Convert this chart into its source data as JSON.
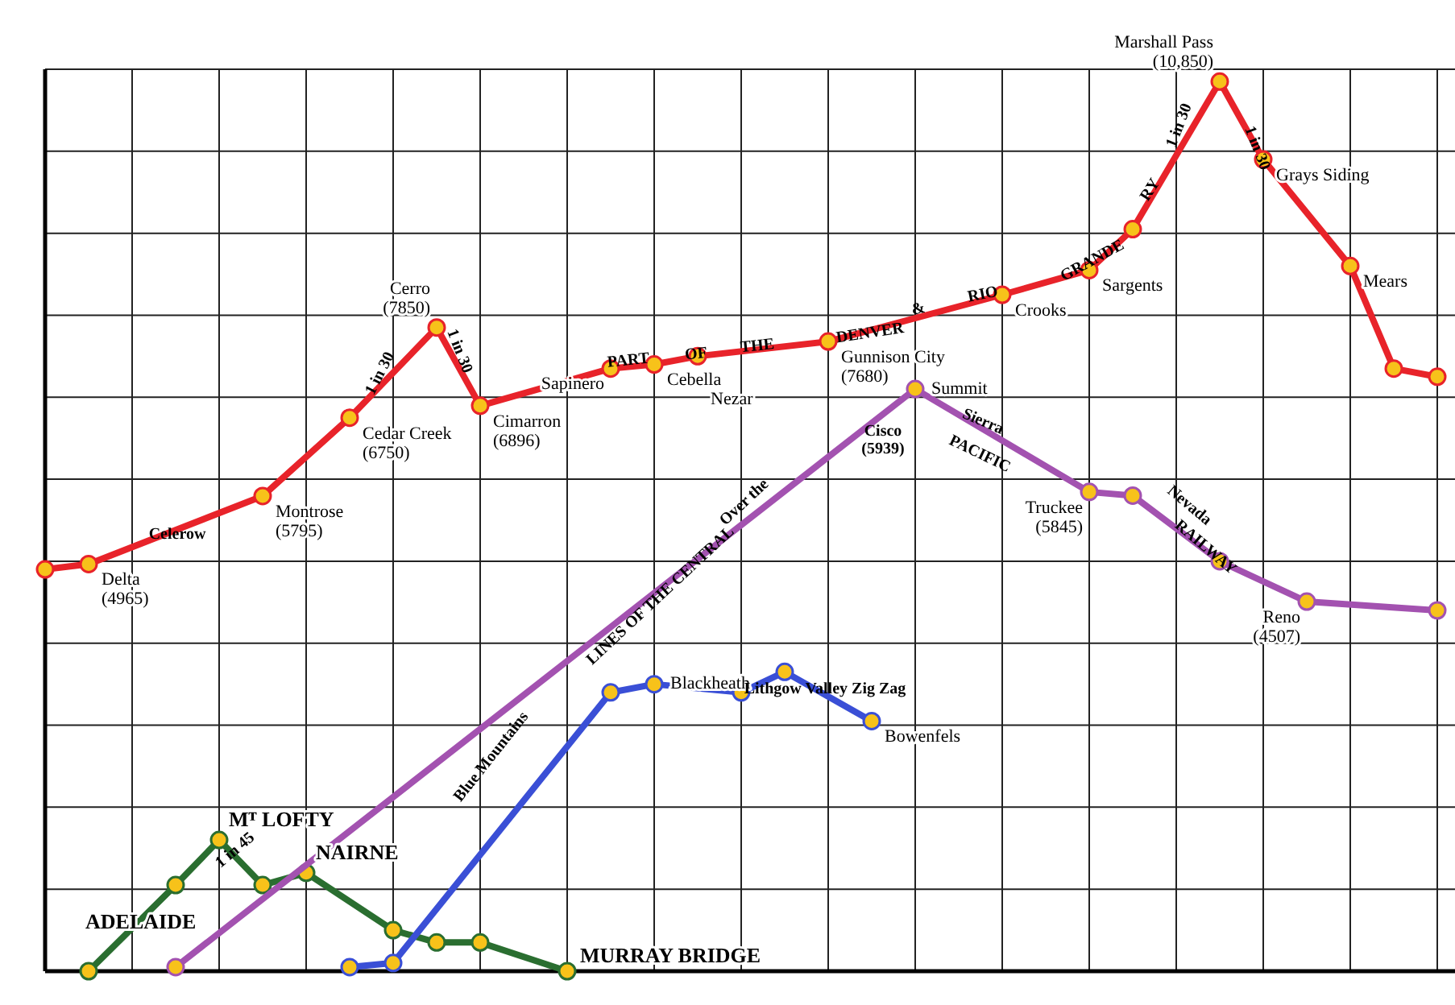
{
  "chart_data": {
    "type": "line",
    "grid": true,
    "legend": false,
    "marker": "circle",
    "line_style": "solid",
    "ylim": [
      0,
      11000
    ],
    "yticks": [
      {
        "value": 0,
        "label": null
      },
      {
        "value": 1000,
        "label": null
      },
      {
        "value": 2000,
        "label": null
      },
      {
        "value": 3000,
        "label": null
      },
      {
        "value": 4000,
        "label": null
      },
      {
        "value": 5000,
        "label": null
      },
      {
        "value": 6000,
        "label": null
      },
      {
        "value": 7000,
        "label": null
      },
      {
        "value": 8000,
        "label": null
      },
      {
        "value": 9000,
        "label": null
      },
      {
        "value": 10000,
        "label": null
      },
      {
        "value": 11000,
        "label": null
      }
    ],
    "categories": [
      null,
      null,
      null,
      null,
      null,
      null,
      null,
      null,
      null,
      null,
      null,
      null,
      null,
      null,
      null,
      null,
      null,
      null,
      null,
      null,
      null,
      null,
      null,
      null,
      null,
      null,
      null,
      null,
      null,
      null,
      null,
      null,
      null
    ],
    "series": [
      {
        "color": "#e8232a",
        "values": [
          4900,
          4965,
          null,
          null,
          null,
          5795,
          null,
          6750,
          null,
          7850,
          6896,
          null,
          null,
          7350,
          7400,
          7500,
          null,
          null,
          7680,
          null,
          null,
          null,
          8250,
          null,
          8550,
          9050,
          null,
          10850,
          9900,
          null,
          8600,
          7350,
          7250
        ],
        "value_labels": [
          null,
          "Delta\n(4965)",
          null,
          null,
          null,
          "Montrose\n(5795)",
          null,
          "Cedar Creek\n(6750)",
          null,
          "Cerro\n(7850)",
          "Cimarron\n(6896)",
          null,
          null,
          "Sapinero",
          "Cebella",
          "Nezar",
          null,
          null,
          "Gunnison City\n(7680)",
          null,
          null,
          null,
          "Crooks",
          null,
          "Sargents",
          null,
          null,
          "Marshall Pass\n(10,850)",
          "Grays Siding",
          null,
          "Mears",
          null,
          null
        ]
      },
      {
        "color": "#a352b0",
        "values": [
          null,
          null,
          null,
          50,
          null,
          null,
          null,
          null,
          null,
          null,
          null,
          null,
          null,
          null,
          null,
          null,
          null,
          null,
          null,
          null,
          7100,
          null,
          null,
          null,
          5845,
          5800,
          null,
          5000,
          null,
          4507,
          null,
          null,
          4400
        ],
        "value_labels": [
          null,
          null,
          null,
          null,
          null,
          null,
          null,
          null,
          null,
          null,
          null,
          null,
          null,
          null,
          null,
          null,
          null,
          null,
          null,
          null,
          "Summit",
          null,
          null,
          null,
          "Truckee\n(5845)",
          null,
          null,
          null,
          null,
          "Reno\n(4507)",
          null,
          null,
          null
        ]
      },
      {
        "color": "#3a4fd6",
        "values": [
          null,
          null,
          null,
          null,
          null,
          null,
          null,
          50,
          100,
          null,
          null,
          null,
          null,
          3400,
          3500,
          null,
          3400,
          3650,
          null,
          3050,
          null,
          null,
          null,
          null,
          null,
          null,
          null,
          null,
          null,
          null,
          null,
          null,
          null
        ],
        "value_labels": [
          null,
          null,
          null,
          null,
          null,
          null,
          null,
          null,
          null,
          null,
          null,
          null,
          null,
          null,
          "Blackheath",
          null,
          null,
          null,
          null,
          "Bowenfels",
          null,
          null,
          null,
          null,
          null,
          null,
          null,
          null,
          null,
          null,
          null,
          null,
          null
        ]
      },
      {
        "color": "#2a6e30",
        "values": [
          null,
          0,
          null,
          1050,
          1600,
          1050,
          1200,
          null,
          500,
          350,
          350,
          null,
          0,
          null,
          null,
          null,
          null,
          null,
          null,
          null,
          null,
          null,
          null,
          null,
          null,
          null,
          null,
          null,
          null,
          null,
          null,
          null,
          null
        ],
        "value_labels": [
          null,
          "ADELAIDE",
          null,
          null,
          "Mᵀ LOFTY",
          null,
          "NAIRNE",
          null,
          null,
          null,
          null,
          null,
          "MURRAY BRIDGE",
          null,
          null,
          null,
          null,
          null,
          null,
          null,
          null,
          null,
          null,
          null,
          null,
          null,
          null,
          null,
          null,
          null,
          null,
          null,
          null
        ]
      }
    ],
    "annotations": [
      "Celerow",
      "1 in 30",
      "1 in 30",
      "PART",
      "OF",
      "THE",
      "DENVER",
      "&",
      "RIO",
      "GRANDE",
      "RY",
      "1 in 30",
      "1 in 30",
      "Over the",
      "LINES OF THE CENTRAL",
      "Cisco\n(5939)",
      "Sierra",
      "PACIFIC",
      "Nevada",
      "RAILWAY",
      "Blue Mountains",
      "Lithgow Valley Zig Zag",
      "1 in 45"
    ]
  }
}
